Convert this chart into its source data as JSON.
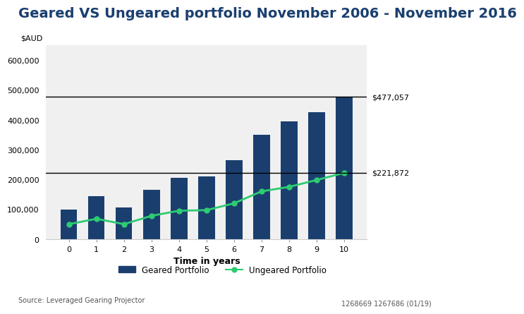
{
  "title": "Geared VS Ungeared portfolio November 2006 - November 2016",
  "ylabel": "$AUD",
  "xlabel": "Time in years",
  "background_color": "#ffffff",
  "plot_bg_color": "#f0f0f0",
  "years": [
    0,
    1,
    2,
    3,
    4,
    5,
    6,
    7,
    8,
    9,
    10
  ],
  "geared_values": [
    100000,
    145000,
    105000,
    165000,
    205000,
    210000,
    265000,
    350000,
    395000,
    425000,
    477057
  ],
  "ungeared_values": [
    50000,
    68000,
    50000,
    78000,
    95000,
    97000,
    120000,
    160000,
    175000,
    198000,
    221872
  ],
  "bar_color": "#1a3f6f",
  "line_color": "#2ecc71",
  "line_marker_color": "#2ecc71",
  "hline1_value": 477057,
  "hline2_value": 221872,
  "hline1_label": "$477,057",
  "hline2_label": "$221,872",
  "ylim": [
    0,
    650000
  ],
  "yticks": [
    0,
    100000,
    200000,
    300000,
    400000,
    500000,
    600000
  ],
  "ytick_labels": [
    "0",
    "100,000",
    "200,000",
    "300,000",
    "400,000",
    "500,000",
    "600,000"
  ],
  "title_color": "#1a3f6f",
  "title_fontsize": 14,
  "source_text": "Source: Leveraged Gearing Projector",
  "footnote_text": "1268669 1267686 (01/19)",
  "legend_geared": "Geared Portfolio",
  "legend_ungeared": "Ungeared Portfolio"
}
